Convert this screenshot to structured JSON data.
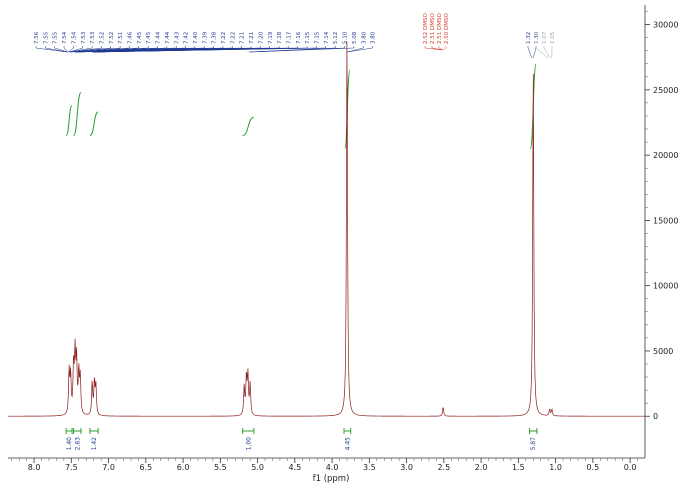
{
  "chart_data": {
    "type": "line",
    "xlabel": "f1 (ppm)",
    "ylabel": "",
    "xlim": [
      8.35,
      -0.2
    ],
    "ylim": [
      -3200,
      31500
    ],
    "x_ticks": [
      "8.0",
      "7.5",
      "7.0",
      "6.5",
      "6.0",
      "5.5",
      "5.0",
      "4.5",
      "4.0",
      "3.5",
      "3.0",
      "2.5",
      "2.0",
      "1.5",
      "1.0",
      "0.5",
      "0.0"
    ],
    "y_ticks": [
      "0",
      "5000",
      "10000",
      "15000",
      "20000",
      "25000",
      "30000"
    ],
    "colors": {
      "spectrum": "#8b1a1a",
      "peak_labels": "#1f3a93",
      "solvent_labels": "#d43a2a",
      "faded_labels": "#9aa0a6",
      "integrals": "#2ca02c"
    },
    "peaks": [
      {
        "ppm": 7.53,
        "height": 3300
      },
      {
        "ppm": 7.51,
        "height": 3000
      },
      {
        "ppm": 7.47,
        "height": 3800
      },
      {
        "ppm": 7.45,
        "height": 4500
      },
      {
        "ppm": 7.43,
        "height": 4200
      },
      {
        "ppm": 7.4,
        "height": 3200
      },
      {
        "ppm": 7.38,
        "height": 2800
      },
      {
        "ppm": 7.22,
        "height": 2500
      },
      {
        "ppm": 7.19,
        "height": 2600
      },
      {
        "ppm": 7.17,
        "height": 2200
      },
      {
        "ppm": 5.18,
        "height": 2200
      },
      {
        "ppm": 5.15,
        "height": 2900
      },
      {
        "ppm": 5.13,
        "height": 3000
      },
      {
        "ppm": 5.1,
        "height": 2400
      },
      {
        "ppm": 3.8,
        "height": 29500
      },
      {
        "ppm": 2.51,
        "height": 700
      },
      {
        "ppm": 1.3,
        "height": 26500
      },
      {
        "ppm": 1.08,
        "height": 500
      },
      {
        "ppm": 1.05,
        "height": 500
      }
    ],
    "peak_labels": {
      "main": [
        "7.56",
        "7.55",
        "7.55",
        "7.54",
        "7.54",
        "7.53",
        "7.53",
        "7.52",
        "7.52",
        "7.51",
        "7.46",
        "7.45",
        "7.45",
        "7.44",
        "7.44",
        "7.43",
        "7.42",
        "7.40",
        "7.39",
        "7.38",
        "7.22",
        "7.22",
        "7.21",
        "7.21",
        "7.20",
        "7.19",
        "7.18",
        "7.17",
        "7.16",
        "7.15",
        "7.15",
        "7.14",
        "5.12",
        "5.10",
        "5.08",
        "3.80",
        "3.80"
      ],
      "solvent": [
        "2.52 DMSO",
        "2.51 DMSO",
        "2.51 DMSO",
        "2.50 DMSO"
      ],
      "methyl": [
        "1.32",
        "1.30"
      ],
      "faded": [
        "1.10",
        "1.07",
        "1.05"
      ]
    },
    "integrals": [
      {
        "ppm": 7.52,
        "label": "1.40"
      },
      {
        "ppm": 7.4,
        "label": "2.83"
      },
      {
        "ppm": 7.19,
        "label": "1.42"
      },
      {
        "ppm": 5.13,
        "label": "1.00"
      },
      {
        "ppm": 3.8,
        "label": "4.45"
      },
      {
        "ppm": 1.3,
        "label": "5.87"
      }
    ]
  }
}
